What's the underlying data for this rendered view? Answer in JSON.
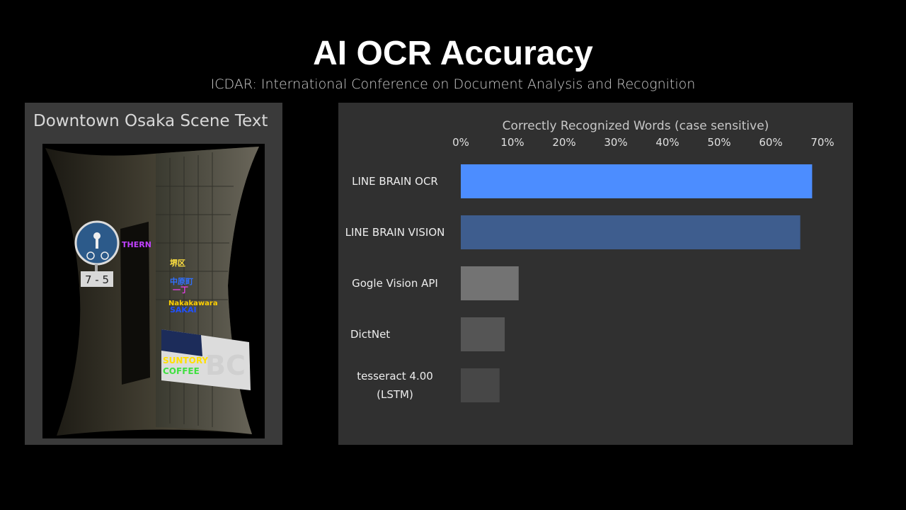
{
  "header": {
    "title": "AI OCR Accuracy",
    "subtitle": "ICDAR: International Conference on Document Analysis and Recognition"
  },
  "left_panel": {
    "title": "Downtown Osaka Scene Text",
    "sign_number": "7 - 5",
    "detections": [
      {
        "text": "THERN",
        "color": "#c040ff"
      },
      {
        "text": "堺区",
        "color": "#ffe040"
      },
      {
        "text": "中原町",
        "color": "#3070ff"
      },
      {
        "text": "一丁",
        "color": "#e040e0"
      },
      {
        "text": "Nakakawara",
        "color": "#ffd000"
      },
      {
        "text": "SAKAI",
        "color": "#2050ff"
      },
      {
        "text": "SUNTORY",
        "color": "#ffe000"
      },
      {
        "text": "COFFEE",
        "color": "#40e040"
      },
      {
        "text": "BC",
        "color": "#d0d0d0"
      }
    ]
  },
  "chart_data": {
    "type": "bar",
    "orientation": "horizontal",
    "title": "Correctly Recognized Words (case sensitive)",
    "categories": [
      "LINE BRAIN OCR",
      "LINE BRAIN VISION",
      "Gogle Vision API",
      "DictNet",
      "tesseract 4.00 (LSTM)"
    ],
    "category_lines": [
      [
        "LINE BRAIN OCR"
      ],
      [
        "LINE BRAIN VISION"
      ],
      [
        "Gogle Vision API"
      ],
      [
        "DictNet"
      ],
      [
        "tesseract 4.00",
        "(LSTM)"
      ]
    ],
    "values": [
      68,
      65.7,
      11.2,
      8.5,
      7.5
    ],
    "colors": [
      "#4c8dff",
      "#3e5d8e",
      "#737373",
      "#555555",
      "#474747"
    ],
    "xlim": [
      0,
      70
    ],
    "ticks": [
      "0%",
      "10%",
      "20%",
      "30%",
      "40%",
      "50%",
      "60%",
      "70%"
    ],
    "tick_values": [
      0,
      10,
      20,
      30,
      40,
      50,
      60,
      70
    ],
    "legend": "none",
    "grid": false
  }
}
